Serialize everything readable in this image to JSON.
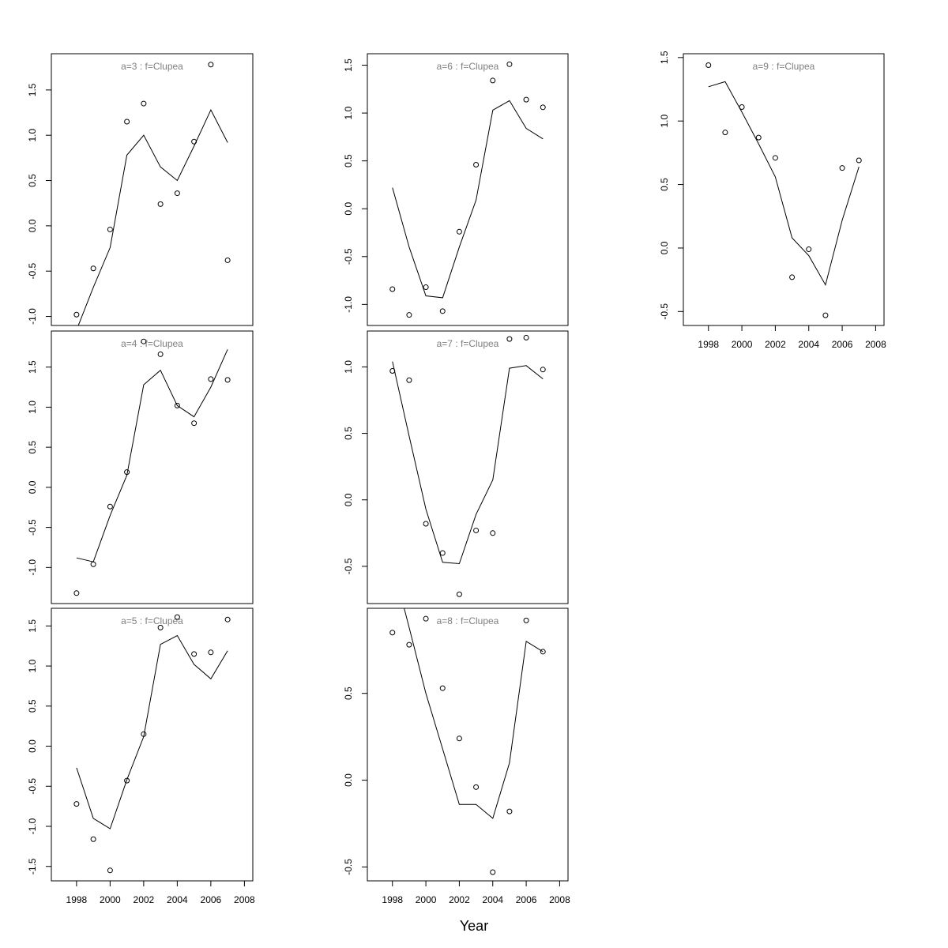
{
  "figure": {
    "xlabel": "Year"
  },
  "chart_data": [
    {
      "type": "line",
      "title": "a=3  :  f=Clupea",
      "x": [
        1998,
        1999,
        2000,
        2001,
        2002,
        2003,
        2004,
        2005,
        2006,
        2007
      ],
      "series": [
        {
          "values": [
            -1.15,
            -0.68,
            -0.24,
            0.78,
            1.0,
            0.65,
            0.5,
            0.88,
            1.28,
            0.92
          ]
        },
        {
          "values": [
            -0.98,
            -0.47,
            -0.04,
            1.15,
            1.35,
            0.24,
            0.36,
            0.93,
            1.78,
            -0.38
          ]
        }
      ],
      "points_series_index": 1,
      "line_series_index": 0,
      "xlim": [
        1996.5,
        2008.5
      ],
      "ylim": [
        -1.1,
        1.9
      ],
      "yticks": [
        -1.0,
        -0.5,
        0.0,
        0.5,
        1.0,
        1.5
      ],
      "ytick_labels": [
        "-1.0",
        "-0.5",
        "0.0",
        "0.5",
        "1.0",
        "1.5"
      ],
      "xticks": [],
      "xtick_labels": []
    },
    {
      "type": "line",
      "title": "a=4  :  f=Clupea",
      "x": [
        1998,
        1999,
        2000,
        2001,
        2002,
        2003,
        2004,
        2005,
        2006,
        2007
      ],
      "series": [
        {
          "values": [
            -0.88,
            -0.93,
            -0.35,
            0.15,
            1.28,
            1.46,
            1.02,
            0.88,
            1.25,
            1.72
          ]
        },
        {
          "values": [
            -1.32,
            -0.96,
            -0.24,
            0.19,
            1.82,
            1.66,
            1.02,
            0.8,
            1.35,
            1.34
          ]
        }
      ],
      "points_series_index": 1,
      "line_series_index": 0,
      "xlim": [
        1996.5,
        2008.5
      ],
      "ylim": [
        -1.45,
        1.95
      ],
      "yticks": [
        -1.0,
        -0.5,
        0.0,
        0.5,
        1.0,
        1.5
      ],
      "ytick_labels": [
        "-1.0",
        "-0.5",
        "0.0",
        "0.5",
        "1.0",
        "1.5"
      ],
      "xticks": [],
      "xtick_labels": []
    },
    {
      "type": "line",
      "title": "a=5  :  f=Clupea",
      "x": [
        1998,
        1999,
        2000,
        2001,
        2002,
        2003,
        2004,
        2005,
        2006,
        2007
      ],
      "series": [
        {
          "values": [
            -0.27,
            -0.9,
            -1.03,
            -0.42,
            0.12,
            1.27,
            1.38,
            1.02,
            0.84,
            1.19
          ]
        },
        {
          "values": [
            -0.72,
            -1.16,
            -1.55,
            -0.43,
            0.15,
            1.48,
            1.61,
            1.15,
            1.17,
            1.58
          ]
        }
      ],
      "points_series_index": 1,
      "line_series_index": 0,
      "xlim": [
        1996.5,
        2008.5
      ],
      "ylim": [
        -1.68,
        1.72
      ],
      "yticks": [
        -1.5,
        -1.0,
        -0.5,
        0.0,
        0.5,
        1.0,
        1.5
      ],
      "ytick_labels": [
        "-1.5",
        "-1.0",
        "-0.5",
        "0.0",
        "0.5",
        "1.0",
        "1.5"
      ],
      "xticks": [
        1998,
        2000,
        2002,
        2004,
        2006,
        2008
      ],
      "xtick_labels": [
        "1998",
        "2000",
        "2002",
        "2004",
        "2006",
        "2008"
      ]
    },
    {
      "type": "line",
      "title": "a=6  :  f=Clupea",
      "x": [
        1998,
        1999,
        2000,
        2001,
        2002,
        2003,
        2004,
        2005,
        2006,
        2007
      ],
      "series": [
        {
          "values": [
            0.22,
            -0.4,
            -0.91,
            -0.93,
            -0.4,
            0.09,
            1.03,
            1.13,
            0.84,
            0.73
          ]
        },
        {
          "values": [
            -0.84,
            -1.11,
            -0.82,
            -1.07,
            -0.24,
            0.46,
            1.34,
            1.51,
            1.14,
            1.06
          ]
        }
      ],
      "points_series_index": 1,
      "line_series_index": 0,
      "xlim": [
        1996.5,
        2008.5
      ],
      "ylim": [
        -1.22,
        1.62
      ],
      "yticks": [
        -1.0,
        -0.5,
        0.0,
        0.5,
        1.0,
        1.5
      ],
      "ytick_labels": [
        "-1.0",
        "-0.5",
        "0.0",
        "0.5",
        "1.0",
        "1.5"
      ],
      "xticks": [],
      "xtick_labels": []
    },
    {
      "type": "line",
      "title": "a=7  :  f=Clupea",
      "x": [
        1998,
        1999,
        2000,
        2001,
        2002,
        2003,
        2004,
        2005,
        2006,
        2007
      ],
      "series": [
        {
          "values": [
            1.04,
            0.48,
            -0.07,
            -0.47,
            -0.48,
            -0.11,
            0.15,
            0.99,
            1.01,
            0.91
          ]
        },
        {
          "values": [
            0.97,
            0.9,
            -0.18,
            -0.4,
            -0.71,
            -0.23,
            -0.25,
            1.21,
            1.22,
            0.98
          ]
        }
      ],
      "points_series_index": 1,
      "line_series_index": 0,
      "xlim": [
        1996.5,
        2008.5
      ],
      "ylim": [
        -0.78,
        1.27
      ],
      "yticks": [
        -0.5,
        0.0,
        0.5,
        1.0
      ],
      "ytick_labels": [
        "-0.5",
        "0.0",
        "0.5",
        "1.0"
      ],
      "xticks": [],
      "xtick_labels": []
    },
    {
      "type": "line",
      "title": "a=8  :  f=Clupea",
      "x": [
        1998,
        1999,
        2000,
        2001,
        2002,
        2003,
        2004,
        2005,
        2006,
        2007
      ],
      "series": [
        {
          "values": [
            1.25,
            0.88,
            0.5,
            0.18,
            -0.14,
            -0.14,
            -0.22,
            0.1,
            0.8,
            0.74
          ]
        },
        {
          "values": [
            0.85,
            0.78,
            0.93,
            0.53,
            0.24,
            -0.04,
            -0.53,
            -0.18,
            0.92,
            0.74
          ]
        }
      ],
      "points_series_index": 1,
      "line_series_index": 0,
      "xlim": [
        1996.5,
        2008.5
      ],
      "ylim": [
        -0.58,
        0.99
      ],
      "yticks": [
        -0.5,
        0.0,
        0.5
      ],
      "ytick_labels": [
        "-0.5",
        "0.0",
        "0.5"
      ],
      "xticks": [
        1998,
        2000,
        2002,
        2004,
        2006,
        2008
      ],
      "xtick_labels": [
        "1998",
        "2000",
        "2002",
        "2004",
        "2006",
        "2008"
      ]
    },
    {
      "type": "line",
      "title": "a=9  :  f=Clupea",
      "x": [
        1998,
        1999,
        2000,
        2001,
        2002,
        2003,
        2004,
        2005,
        2006,
        2007
      ],
      "series": [
        {
          "values": [
            1.27,
            1.31,
            1.07,
            0.82,
            0.56,
            0.08,
            -0.06,
            -0.29,
            0.22,
            0.64
          ]
        },
        {
          "values": [
            1.44,
            0.91,
            1.11,
            0.87,
            0.71,
            -0.23,
            -0.01,
            -0.53,
            0.63,
            0.69
          ]
        }
      ],
      "points_series_index": 1,
      "line_series_index": 0,
      "xlim": [
        1996.5,
        2008.5
      ],
      "ylim": [
        -0.61,
        1.53
      ],
      "yticks": [
        -0.5,
        0.0,
        0.5,
        1.0,
        1.5
      ],
      "ytick_labels": [
        "-0.5",
        "0.0",
        "0.5",
        "1.0",
        "1.5"
      ],
      "xticks": [
        1998,
        2000,
        2002,
        2004,
        2006,
        2008
      ],
      "xtick_labels": [
        "1998",
        "2000",
        "2002",
        "2004",
        "2006",
        "2008"
      ]
    }
  ]
}
